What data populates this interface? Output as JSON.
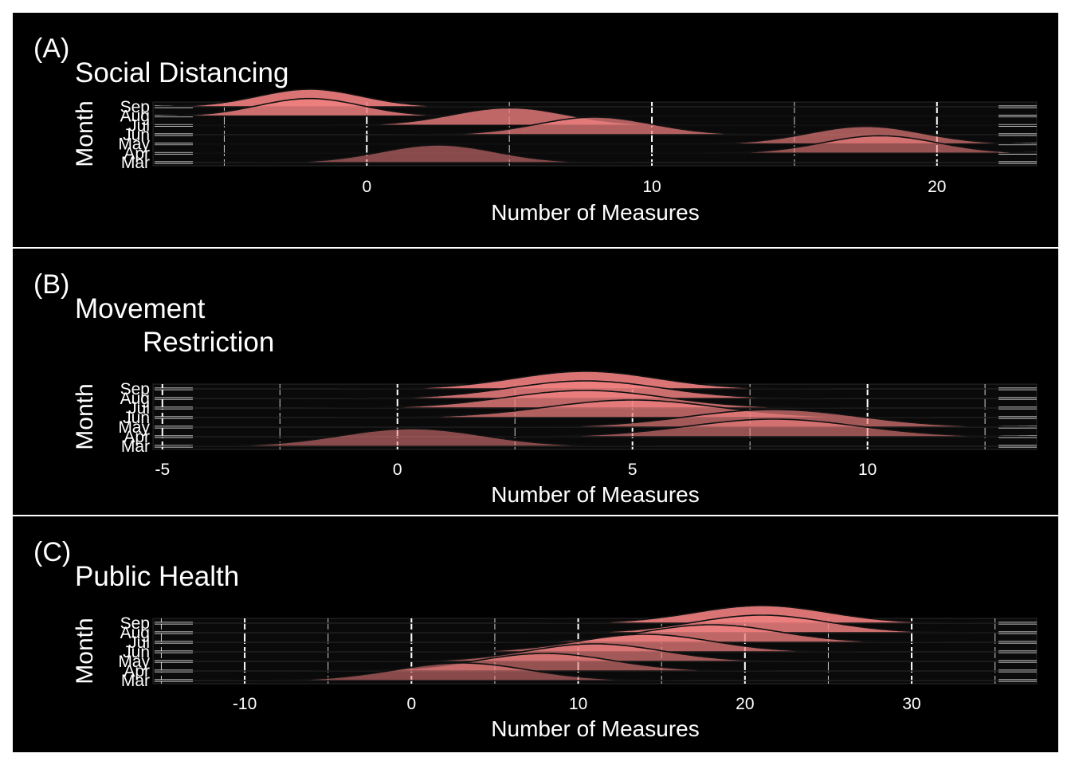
{
  "figure": {
    "background": "#000000",
    "fill_color": "#f08080",
    "outline_color": "#1a1a1a"
  },
  "chart_data": [
    {
      "type": "ridgeline",
      "tag": "(A)",
      "title": "Social Distancing",
      "title_line2": "",
      "xlabel": "Number of Measures",
      "ylabel": "Month",
      "xlim": [
        -7.5,
        23.5
      ],
      "xticks": [
        0,
        10,
        20
      ],
      "grid": "on",
      "categories": [
        "Mar",
        "Apr",
        "May",
        "Jun",
        "Jul",
        "Aug",
        "Sep"
      ],
      "series": [
        {
          "name": "Mar",
          "mean": 2.5,
          "sd": 2.0
        },
        {
          "name": "Apr",
          "mean": 18.0,
          "sd": 2.0
        },
        {
          "name": "May",
          "mean": 17.5,
          "sd": 2.0
        },
        {
          "name": "Jun",
          "mean": 8.0,
          "sd": 2.0
        },
        {
          "name": "Jul",
          "mean": 5.0,
          "sd": 2.0
        },
        {
          "name": "Aug",
          "mean": -2.0,
          "sd": 1.8
        },
        {
          "name": "Sep",
          "mean": -2.0,
          "sd": 1.8
        }
      ]
    },
    {
      "type": "ridgeline",
      "tag": "(B)",
      "title": "Movement",
      "title_line2": "Restriction",
      "xlabel": "Number of Measures",
      "ylabel": "Month",
      "xlim": [
        -5.2,
        13.6
      ],
      "xticks": [
        -5,
        0,
        5,
        10
      ],
      "grid": "on",
      "categories": [
        "Mar",
        "Apr",
        "May",
        "Jun",
        "Jul",
        "Aug",
        "Sep"
      ],
      "series": [
        {
          "name": "Mar",
          "mean": 0.3,
          "sd": 1.5
        },
        {
          "name": "Apr",
          "mean": 8.0,
          "sd": 1.8
        },
        {
          "name": "May",
          "mean": 8.0,
          "sd": 1.8
        },
        {
          "name": "Jun",
          "mean": 5.0,
          "sd": 1.8
        },
        {
          "name": "Jul",
          "mean": 4.0,
          "sd": 1.7
        },
        {
          "name": "Aug",
          "mean": 4.0,
          "sd": 1.6
        },
        {
          "name": "Sep",
          "mean": 4.0,
          "sd": 1.5
        }
      ]
    },
    {
      "type": "ridgeline",
      "tag": "(C)",
      "title": "Public Health",
      "title_line2": "",
      "xlabel": "Number of Measures",
      "ylabel": "Month",
      "xlim": [
        -15.5,
        37.5
      ],
      "xticks": [
        -10,
        0,
        10,
        20,
        30
      ],
      "grid": "on",
      "categories": [
        "Mar",
        "Apr",
        "May",
        "Jun",
        "Jul",
        "Aug",
        "Sep"
      ],
      "series": [
        {
          "name": "Mar",
          "mean": 3.0,
          "sd": 4.0
        },
        {
          "name": "Apr",
          "mean": 8.0,
          "sd": 4.0
        },
        {
          "name": "May",
          "mean": 11.0,
          "sd": 4.0
        },
        {
          "name": "Jun",
          "mean": 14.0,
          "sd": 4.0
        },
        {
          "name": "Jul",
          "mean": 18.0,
          "sd": 4.0
        },
        {
          "name": "Aug",
          "mean": 21.0,
          "sd": 4.0
        },
        {
          "name": "Sep",
          "mean": 21.0,
          "sd": 4.0
        }
      ]
    }
  ]
}
